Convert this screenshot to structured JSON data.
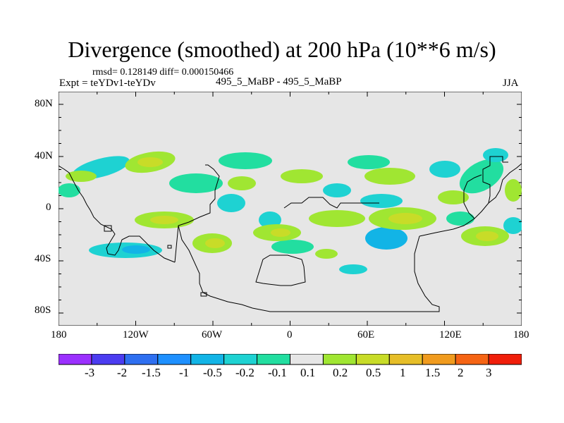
{
  "title": "Divergence (smoothed) at 200 hPa (10**6 m/s)",
  "stats": "rmsd= 0.128149 diff= 0.000150466",
  "expt": "Expt = teYDv1-teYDv",
  "cases": "495_5_MaBP - 495_5_MaBP",
  "season": "JJA",
  "lat_labels": [
    "80N",
    "40N",
    "0",
    "40S",
    "80S"
  ],
  "lon_labels": [
    "180",
    "120W",
    "60W",
    "0",
    "60E",
    "120E",
    "180"
  ],
  "colorbar": {
    "labels": [
      "-3",
      "-2",
      "-1.5",
      "-1",
      "-0.5",
      "-0.2",
      "-0.1",
      "0.1",
      "0.2",
      "0.5",
      "1",
      "1.5",
      "2",
      "3"
    ],
    "colors": [
      "#9b30ff",
      "#4b3cf0",
      "#2e6ff0",
      "#1e90ff",
      "#12b4e6",
      "#1ed2d2",
      "#22dea0",
      "#e6e6e6",
      "#a0e632",
      "#c8dc28",
      "#e6be28",
      "#f09b1e",
      "#f56414",
      "#f01e0a"
    ]
  },
  "colors": {
    "background": "#e6e6e6",
    "coast": "#000000",
    "pos_low": "#a0e632",
    "pos_mid": "#c8dc28",
    "pos_high": "#e6be28",
    "neg_low": "#22dea0",
    "neg_mid": "#1ed2d2",
    "neg_high": "#12b4e6"
  }
}
